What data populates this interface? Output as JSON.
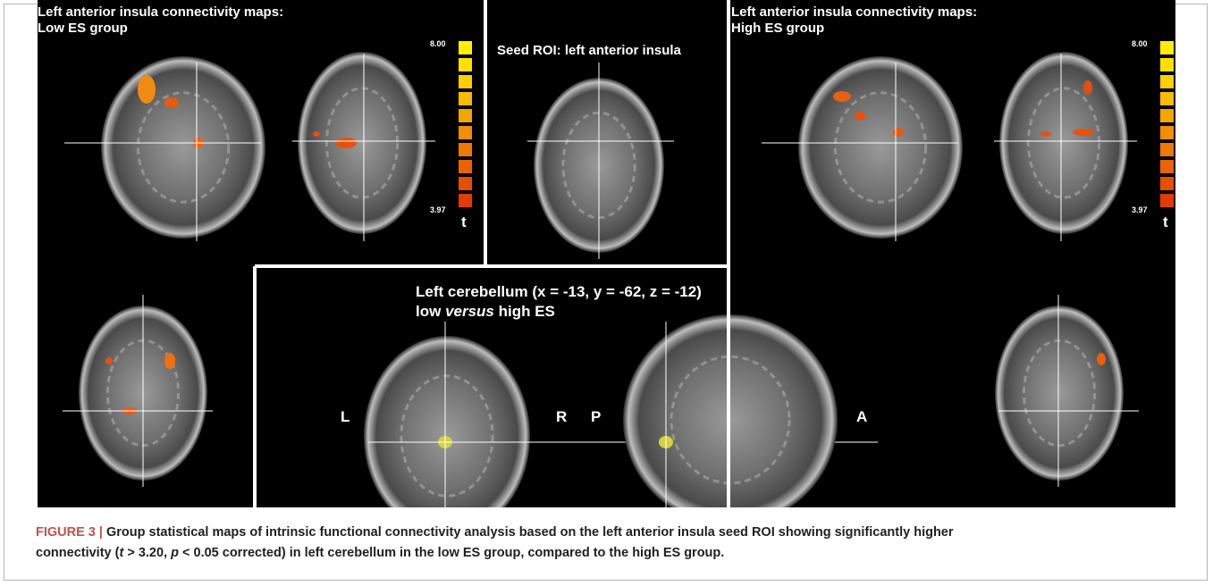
{
  "figure": {
    "panels": {
      "low_es": {
        "title_line1": "Left anterior insula connectivity maps:",
        "title_line2": "Low ES group",
        "scale_max": "8.00",
        "scale_min": "3.97",
        "scale_unit": "t"
      },
      "seed": {
        "title": "Seed ROI: left anterior insula"
      },
      "high_es": {
        "title_line1": "Left anterior insula connectivity maps:",
        "title_line2": "High ES group",
        "scale_max": "8.00",
        "scale_min": "3.97",
        "scale_unit": "t"
      },
      "contrast": {
        "title_line1": "Left cerebellum (x = -13, y = -62, z = -12)",
        "title_line2_a": "low ",
        "title_line2_b": "versus",
        "title_line2_c": " high ES",
        "left_label": "L",
        "right_label": "R",
        "posterior_label": "P",
        "anterior_label": "A"
      }
    },
    "caption": {
      "label": "FIGURE 3 |",
      "part1": " Group statistical maps of intrinsic functional connectivity analysis based on the left anterior insula seed ROI showing significantly higher",
      "part2": "connectivity (",
      "t": "t",
      "part3": " > 3.20, ",
      "p": "p",
      "part4": " < 0.05 corrected) in left cerebellum in the low ES group, compared to the high ES group."
    }
  }
}
